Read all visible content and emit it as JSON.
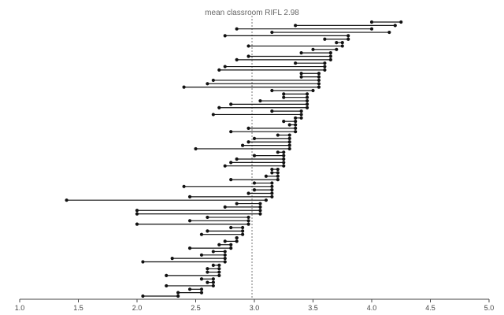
{
  "chart_data": {
    "type": "dumbbell",
    "xlim": [
      1.0,
      5.0
    ],
    "x_ticks": [
      "1.0",
      "1.5",
      "2.0",
      "2.5",
      "3.0",
      "3.5",
      "4.0",
      "4.5",
      "5.0"
    ],
    "grid": false,
    "reference_line": {
      "value": 2.98,
      "label": "mean classroom RIFL 2.98"
    },
    "point_color": "#111111",
    "segments": [
      [
        4.0,
        4.25
      ],
      [
        3.35,
        4.2
      ],
      [
        2.85,
        4.0
      ],
      [
        3.15,
        4.15
      ],
      [
        2.75,
        3.8
      ],
      [
        3.6,
        3.8
      ],
      [
        3.7,
        3.75
      ],
      [
        2.95,
        3.75
      ],
      [
        3.5,
        3.7
      ],
      [
        3.4,
        3.65
      ],
      [
        2.95,
        3.65
      ],
      [
        2.85,
        3.65
      ],
      [
        3.35,
        3.6
      ],
      [
        2.75,
        3.6
      ],
      [
        2.7,
        3.6
      ],
      [
        3.4,
        3.55
      ],
      [
        3.4,
        3.55
      ],
      [
        2.65,
        3.55
      ],
      [
        2.6,
        3.55
      ],
      [
        2.4,
        3.55
      ],
      [
        3.15,
        3.5
      ],
      [
        3.25,
        3.45
      ],
      [
        3.25,
        3.45
      ],
      [
        3.05,
        3.45
      ],
      [
        2.8,
        3.45
      ],
      [
        2.7,
        3.45
      ],
      [
        3.15,
        3.4
      ],
      [
        2.65,
        3.4
      ],
      [
        3.35,
        3.4
      ],
      [
        3.25,
        3.35
      ],
      [
        3.3,
        3.35
      ],
      [
        2.95,
        3.35
      ],
      [
        2.8,
        3.35
      ],
      [
        3.2,
        3.3
      ],
      [
        3.0,
        3.3
      ],
      [
        2.95,
        3.3
      ],
      [
        2.9,
        3.3
      ],
      [
        2.5,
        3.3
      ],
      [
        3.2,
        3.25
      ],
      [
        3.0,
        3.25
      ],
      [
        2.85,
        3.25
      ],
      [
        2.8,
        3.25
      ],
      [
        2.75,
        3.25
      ],
      [
        3.15,
        3.2
      ],
      [
        3.15,
        3.2
      ],
      [
        3.1,
        3.2
      ],
      [
        2.8,
        3.2
      ],
      [
        3.0,
        3.15
      ],
      [
        2.4,
        3.15
      ],
      [
        3.0,
        3.15
      ],
      [
        2.95,
        3.15
      ],
      [
        2.45,
        3.15
      ],
      [
        1.4,
        3.1
      ],
      [
        2.85,
        3.05
      ],
      [
        2.75,
        3.05
      ],
      [
        2.0,
        3.05
      ],
      [
        2.0,
        3.05
      ],
      [
        2.6,
        2.95
      ],
      [
        2.45,
        2.95
      ],
      [
        2.0,
        2.95
      ],
      [
        2.8,
        2.9
      ],
      [
        2.6,
        2.9
      ],
      [
        2.55,
        2.9
      ],
      [
        2.85,
        2.85
      ],
      [
        2.75,
        2.85
      ],
      [
        2.7,
        2.8
      ],
      [
        2.45,
        2.8
      ],
      [
        2.65,
        2.75
      ],
      [
        2.55,
        2.75
      ],
      [
        2.3,
        2.75
      ],
      [
        2.05,
        2.75
      ],
      [
        2.65,
        2.7
      ],
      [
        2.6,
        2.7
      ],
      [
        2.6,
        2.7
      ],
      [
        2.25,
        2.7
      ],
      [
        2.55,
        2.65
      ],
      [
        2.6,
        2.65
      ],
      [
        2.25,
        2.65
      ],
      [
        2.45,
        2.55
      ],
      [
        2.35,
        2.55
      ],
      [
        2.05,
        2.35
      ]
    ]
  }
}
